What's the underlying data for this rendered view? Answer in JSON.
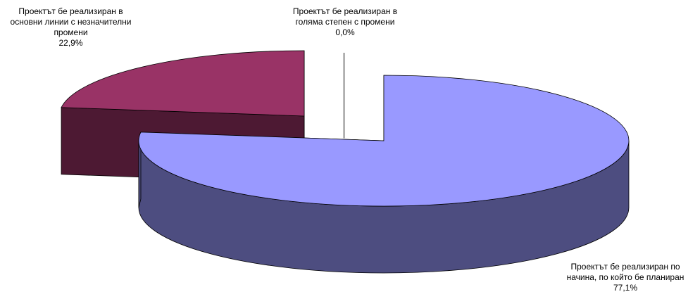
{
  "chart_data": {
    "type": "pie3d",
    "categories": [
      "Проектът бе реализиран по начина, по който бе планиран",
      "Проектът бе реализиран в голяма степен с промени",
      "Проектът бе реализиран в основни линии с незначителни промени"
    ],
    "values": [
      77.1,
      0,
      22.9
    ],
    "value_labels": [
      "77,1%",
      "0,0%",
      "22,9%"
    ],
    "colors": [
      "#9999ff",
      "#ffffcc",
      "#993366"
    ],
    "side_colors": [
      "#4d4d80",
      "#80806a",
      "#4d1933"
    ]
  }
}
